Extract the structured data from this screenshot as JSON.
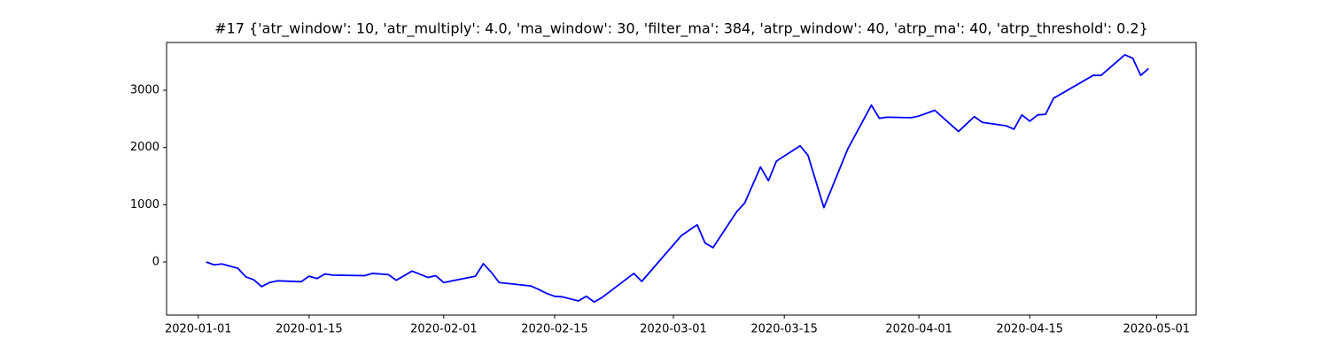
{
  "chart_data": {
    "type": "line",
    "title": "#17 {'atr_window': 10, 'atr_multiply': 4.0, 'ma_window': 30, 'filter_ma': 384, 'atrp_window': 40, 'atrp_ma': 40, 'atrp_threshold': 0.2}",
    "x": [
      "2020-01-02",
      "2020-01-03",
      "2020-01-04",
      "2020-01-06",
      "2020-01-07",
      "2020-01-08",
      "2020-01-09",
      "2020-01-10",
      "2020-01-11",
      "2020-01-14",
      "2020-01-15",
      "2020-01-16",
      "2020-01-17",
      "2020-01-18",
      "2020-01-22",
      "2020-01-23",
      "2020-01-25",
      "2020-01-26",
      "2020-01-28",
      "2020-01-30",
      "2020-01-31",
      "2020-02-01",
      "2020-02-05",
      "2020-02-06",
      "2020-02-07",
      "2020-02-08",
      "2020-02-12",
      "2020-02-13",
      "2020-02-14",
      "2020-02-15",
      "2020-02-16",
      "2020-02-18",
      "2020-02-19",
      "2020-02-20",
      "2020-02-21",
      "2020-02-25",
      "2020-02-26",
      "2020-03-02",
      "2020-03-04",
      "2020-03-05",
      "2020-03-06",
      "2020-03-09",
      "2020-03-10",
      "2020-03-12",
      "2020-03-13",
      "2020-03-14",
      "2020-03-17",
      "2020-03-18",
      "2020-03-20",
      "2020-03-23",
      "2020-03-26",
      "2020-03-27",
      "2020-03-28",
      "2020-03-31",
      "2020-04-01",
      "2020-04-03",
      "2020-04-06",
      "2020-04-08",
      "2020-04-09",
      "2020-04-12",
      "2020-04-13",
      "2020-04-14",
      "2020-04-15",
      "2020-04-16",
      "2020-04-17",
      "2020-04-18",
      "2020-04-23",
      "2020-04-24",
      "2020-04-27",
      "2020-04-28",
      "2020-04-29",
      "2020-04-30"
    ],
    "series": [
      {
        "color": "#0000ff",
        "values": [
          0,
          -50,
          -35,
          -110,
          -260,
          -310,
          -430,
          -360,
          -330,
          -345,
          -250,
          -290,
          -210,
          -230,
          -240,
          -200,
          -220,
          -320,
          -160,
          -270,
          -240,
          -360,
          -250,
          -30,
          -180,
          -360,
          -420,
          -480,
          -550,
          -600,
          -610,
          -680,
          -600,
          -700,
          -620,
          -200,
          -340,
          460,
          650,
          330,
          250,
          880,
          1030,
          1660,
          1420,
          1760,
          2030,
          1860,
          950,
          1970,
          2740,
          2510,
          2530,
          2520,
          2550,
          2650,
          2280,
          2540,
          2440,
          2380,
          2320,
          2570,
          2460,
          2570,
          2580,
          2860,
          3260,
          3260,
          3620,
          3560,
          3260,
          3380
        ]
      }
    ],
    "xlim": [
      "2019-12-28",
      "2020-05-06"
    ],
    "xticks": [
      "2020-01-01",
      "2020-01-15",
      "2020-02-01",
      "2020-02-15",
      "2020-03-01",
      "2020-03-15",
      "2020-04-01",
      "2020-04-15",
      "2020-05-01"
    ],
    "ylim": [
      -928,
      3835
    ],
    "yticks": [
      0,
      1000,
      2000,
      3000
    ]
  }
}
